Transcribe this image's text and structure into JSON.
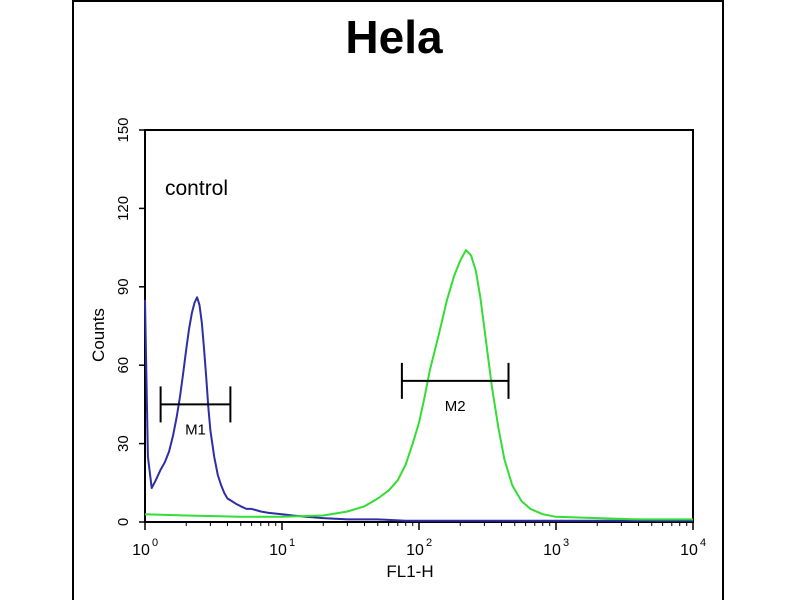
{
  "chart_data": {
    "type": "line",
    "title": "Hela",
    "xlabel": "FL1-H",
    "ylabel": "Counts",
    "xscale": "log",
    "xlim": [
      1,
      10000
    ],
    "ylim": [
      0,
      150
    ],
    "x_ticks": [
      {
        "value": 1,
        "base": "10",
        "exp": "0"
      },
      {
        "value": 10,
        "base": "10",
        "exp": "1"
      },
      {
        "value": 100,
        "base": "10",
        "exp": "2"
      },
      {
        "value": 1000,
        "base": "10",
        "exp": "3"
      },
      {
        "value": 10000,
        "base": "10",
        "exp": "4"
      }
    ],
    "y_ticks": [
      "0",
      "30",
      "60",
      "90",
      "120",
      "150"
    ],
    "annotation": "control",
    "grid": false,
    "series": [
      {
        "color": "#2e2ea6",
        "x": [
          1,
          1.05,
          1.12,
          1.2,
          1.3,
          1.4,
          1.5,
          1.6,
          1.7,
          1.8,
          1.9,
          2.0,
          2.1,
          2.2,
          2.3,
          2.4,
          2.5,
          2.6,
          2.7,
          2.8,
          2.9,
          3.0,
          3.2,
          3.4,
          3.6,
          3.8,
          4.0,
          4.3,
          4.6,
          5.0,
          5.5,
          6.0,
          7.0,
          8.0,
          10,
          12,
          15,
          20,
          30,
          50,
          80,
          150,
          300,
          1000,
          10000
        ],
        "values": [
          85,
          25,
          13,
          16,
          20,
          23,
          27,
          33,
          40,
          48,
          57,
          66,
          74,
          80,
          84,
          86,
          83,
          76,
          66,
          55,
          44,
          35,
          25,
          18,
          14,
          11,
          9,
          8,
          7,
          6,
          5,
          5,
          4,
          3.5,
          3,
          2.5,
          2,
          1.5,
          1,
          1,
          0.5,
          0.5,
          0.5,
          0.5,
          0.5
        ]
      },
      {
        "color": "#33dd33",
        "x": [
          1,
          2,
          5,
          10,
          20,
          30,
          40,
          50,
          60,
          70,
          80,
          90,
          100,
          110,
          120,
          140,
          160,
          180,
          200,
          220,
          240,
          260,
          280,
          300,
          340,
          380,
          420,
          480,
          560,
          650,
          800,
          1000,
          2000,
          4000,
          10000
        ],
        "values": [
          3,
          2.5,
          2,
          2,
          2.5,
          4,
          6,
          9,
          12,
          16,
          22,
          30,
          38,
          48,
          58,
          72,
          85,
          94,
          100,
          104,
          102,
          96,
          86,
          74,
          52,
          36,
          24,
          14,
          8,
          5,
          3,
          2,
          1.5,
          1,
          1
        ]
      }
    ],
    "markers": [
      {
        "label": "M1",
        "range": [
          1.3,
          4.2
        ],
        "y": 45
      },
      {
        "label": "M2",
        "range": [
          75,
          450
        ],
        "y": 54
      }
    ]
  }
}
